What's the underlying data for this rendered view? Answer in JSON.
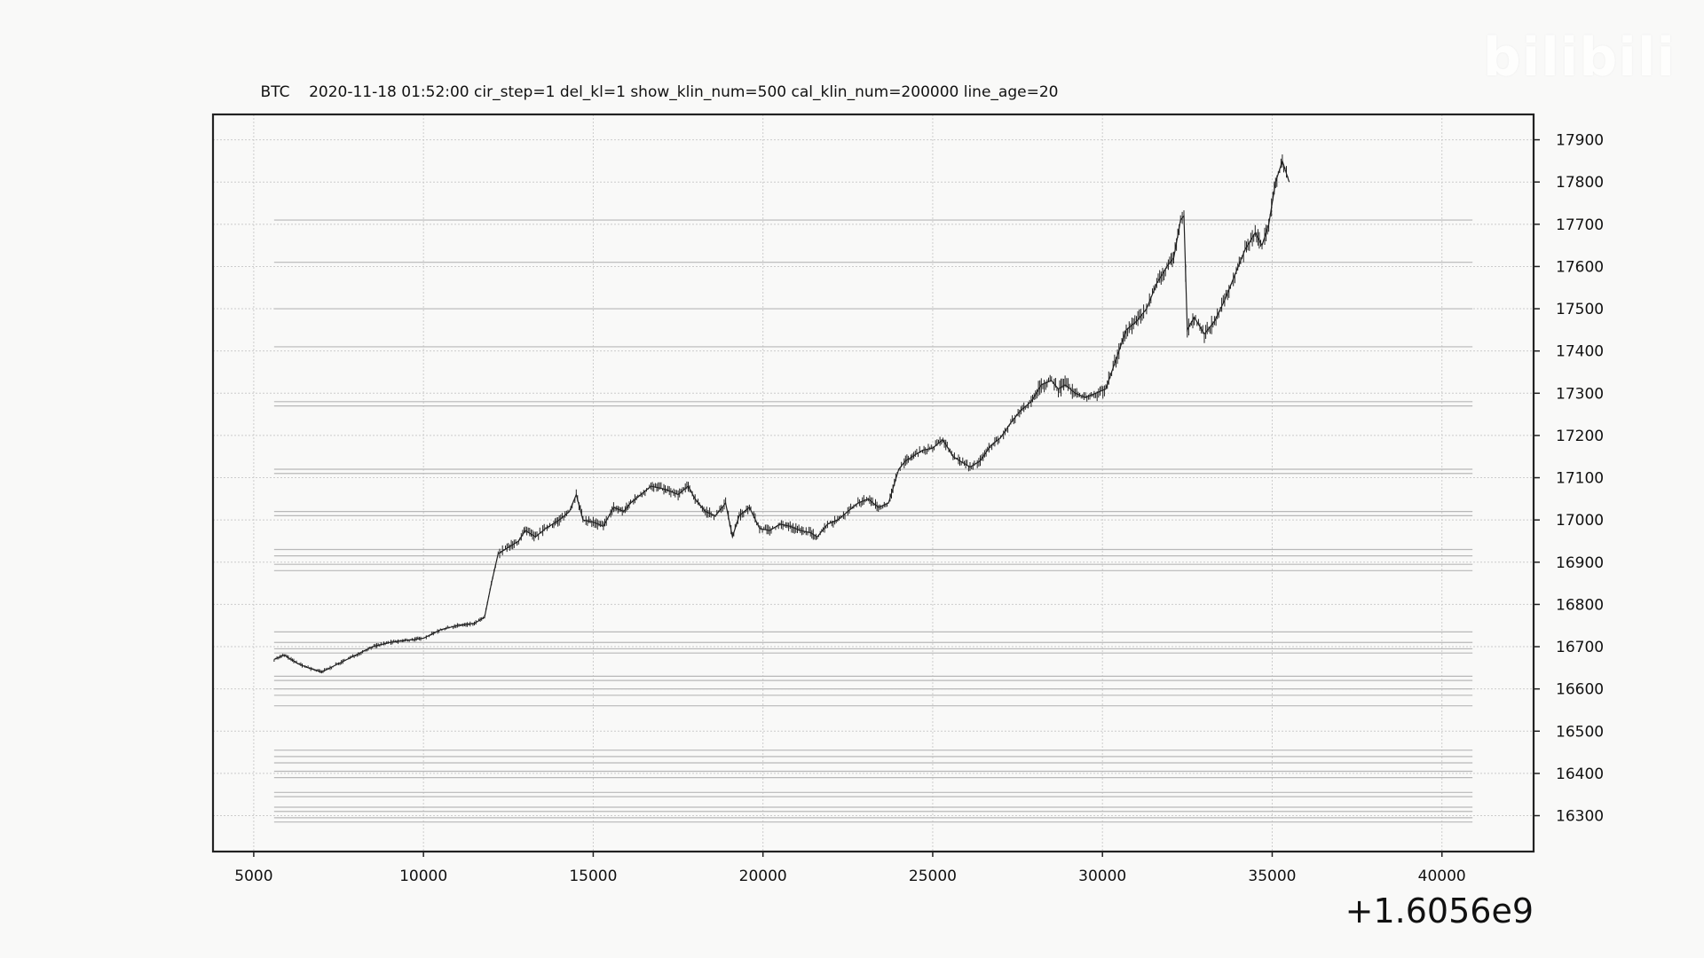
{
  "watermark": "bilibili",
  "chart_data": {
    "type": "line",
    "title": "BTC    2020-11-18 01:52:00 cir_step=1 del_kl=1 show_klin_num=500 cal_klin_num=200000 line_age=20",
    "xlabel": "",
    "ylabel": "",
    "x_offset_label": "+1.6056e9",
    "xlim": [
      3800,
      42700
    ],
    "ylim": [
      16215,
      17960
    ],
    "x_ticks": [
      5000,
      10000,
      15000,
      20000,
      25000,
      30000,
      35000,
      40000
    ],
    "y_ticks": [
      16300,
      16400,
      16500,
      16600,
      16700,
      16800,
      16900,
      17000,
      17100,
      17200,
      17300,
      17400,
      17500,
      17600,
      17700,
      17800,
      17900
    ],
    "y_axis_side": "right",
    "grid": true,
    "legend": "none",
    "colors": {
      "price": "#222222",
      "level": "#b8b8b8",
      "grid": "#cccccc",
      "background": "#f9f9f8"
    },
    "series": [
      {
        "x": [
          5600,
          5900,
          6300,
          6600,
          7000,
          7500,
          8000,
          8500,
          9000,
          9500,
          10000,
          10500,
          11000,
          11500,
          11800,
          12000,
          12200,
          12500,
          12800,
          13000,
          13300,
          13600,
          14000,
          14300,
          14500,
          14700,
          15000,
          15300,
          15600,
          15900,
          16100,
          16400,
          16700,
          17000,
          17200,
          17500,
          17800,
          18000,
          18300,
          18600,
          18900,
          19100,
          19300,
          19600,
          19900,
          20200,
          20500,
          20800,
          21100,
          21400,
          21600,
          21900,
          22200,
          22500,
          22800,
          23100,
          23400,
          23700,
          24000,
          24200,
          24400,
          24700,
          25000,
          25300,
          25600,
          25800,
          26100,
          26400,
          26700,
          27000,
          27300,
          27600,
          27900,
          28200,
          28500,
          28700,
          28900,
          29200,
          29500,
          29800,
          30100,
          30400,
          30700,
          31000,
          31300,
          31600,
          31900,
          32100,
          32300,
          32400,
          32500,
          32700,
          33000,
          33300,
          33600,
          33900,
          34200,
          34500,
          34700,
          34900,
          35100,
          35300,
          35500
        ],
        "values": [
          16670,
          16680,
          16660,
          16650,
          16640,
          16660,
          16680,
          16700,
          16710,
          16715,
          16720,
          16740,
          16750,
          16755,
          16770,
          16850,
          16920,
          16935,
          16950,
          16975,
          16960,
          16980,
          17000,
          17020,
          17060,
          17000,
          16995,
          16985,
          17030,
          17020,
          17040,
          17060,
          17080,
          17075,
          17070,
          17060,
          17080,
          17050,
          17020,
          17010,
          17040,
          16960,
          17010,
          17030,
          16980,
          16975,
          16990,
          16985,
          16975,
          16970,
          16960,
          16990,
          17000,
          17020,
          17040,
          17050,
          17030,
          17040,
          17120,
          17140,
          17150,
          17165,
          17170,
          17190,
          17150,
          17140,
          17125,
          17140,
          17175,
          17195,
          17230,
          17260,
          17280,
          17320,
          17330,
          17310,
          17320,
          17300,
          17290,
          17300,
          17310,
          17380,
          17450,
          17470,
          17500,
          17560,
          17600,
          17620,
          17710,
          17720,
          17450,
          17480,
          17440,
          17470,
          17520,
          17580,
          17640,
          17680,
          17650,
          17700,
          17800,
          17850,
          17800
        ]
      }
    ],
    "levels": [
      17710,
      17610,
      17500,
      17410,
      17280,
      17270,
      17120,
      17110,
      17020,
      17010,
      16930,
      16915,
      16895,
      16880,
      16735,
      16710,
      16695,
      16685,
      16630,
      16620,
      16600,
      16585,
      16560,
      16455,
      16440,
      16425,
      16405,
      16390,
      16355,
      16345,
      16320,
      16310,
      16295,
      16285
    ]
  }
}
